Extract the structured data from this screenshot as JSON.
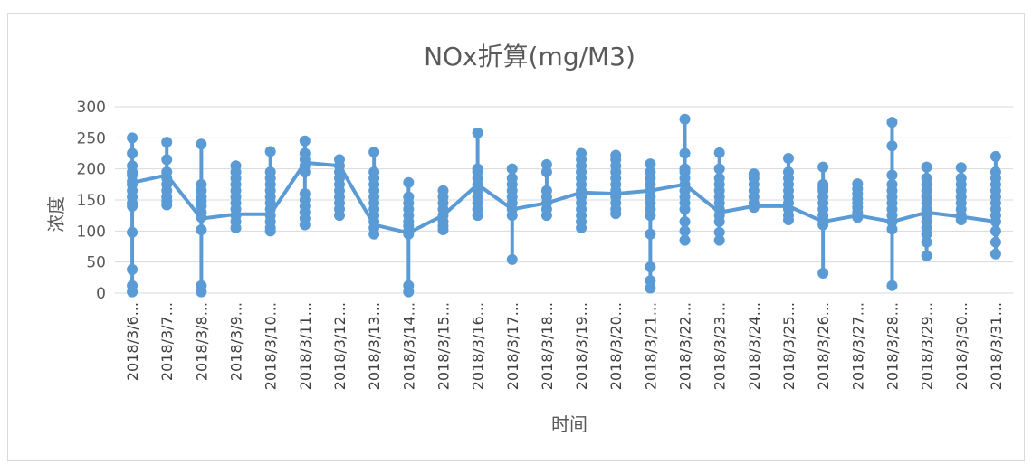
{
  "chart_data": {
    "type": "line",
    "title": "NOx折算(mg/M3)",
    "xlabel": "时间",
    "ylabel": "浓度",
    "ylim": [
      0,
      300
    ],
    "yticks": [
      0,
      50,
      100,
      150,
      200,
      250,
      300
    ],
    "grid": true,
    "legend": "none",
    "color": "#5b9bd5",
    "categories": [
      "2018/3/6...",
      "2018/3/7...",
      "2018/3/8...",
      "2018/3/9...",
      "2018/3/10...",
      "2018/3/11...",
      "2018/3/12...",
      "2018/3/13...",
      "2018/3/14...",
      "2018/3/15...",
      "2018/3/16...",
      "2018/3/17...",
      "2018/3/18...",
      "2018/3/19...",
      "2018/3/20...",
      "2018/3/21...",
      "2018/3/22...",
      "2018/3/23...",
      "2018/3/24...",
      "2018/3/25...",
      "2018/3/26...",
      "2018/3/27...",
      "2018/3/28...",
      "2018/3/29...",
      "2018/3/30...",
      "2018/3/31..."
    ],
    "series": [
      {
        "values": [
          [
            250,
            225,
            205,
            195,
            190,
            180,
            175,
            165,
            155,
            145,
            140,
            98,
            38,
            12,
            2
          ],
          [
            243,
            215,
            195,
            185,
            175,
            165,
            155,
            148,
            142
          ],
          [
            240,
            175,
            165,
            155,
            148,
            140,
            130,
            122,
            102,
            12,
            2
          ],
          [
            205,
            195,
            185,
            175,
            165,
            155,
            145,
            135,
            125,
            115,
            105
          ],
          [
            228,
            195,
            185,
            175,
            165,
            155,
            145,
            135,
            125,
            115,
            105,
            100
          ],
          [
            245,
            225,
            215,
            205,
            195,
            160,
            150,
            140,
            130,
            120,
            110
          ],
          [
            215,
            205,
            195,
            185,
            175,
            165,
            155,
            145,
            135,
            125
          ],
          [
            227,
            195,
            185,
            175,
            165,
            155,
            145,
            135,
            125,
            115,
            105,
            95
          ],
          [
            178,
            155,
            145,
            135,
            125,
            115,
            108,
            100,
            95,
            12,
            2
          ],
          [
            165,
            155,
            145,
            135,
            125,
            115,
            108,
            102
          ],
          [
            258,
            200,
            195,
            185,
            175,
            165,
            155,
            145,
            135,
            125
          ],
          [
            200,
            185,
            175,
            165,
            155,
            145,
            135,
            125,
            54
          ],
          [
            207,
            195,
            165,
            155,
            145,
            135,
            125
          ],
          [
            225,
            215,
            205,
            195,
            185,
            175,
            165,
            155,
            145,
            135,
            125,
            115,
            105
          ],
          [
            222,
            215,
            205,
            195,
            185,
            175,
            165,
            155,
            145,
            135,
            128
          ],
          [
            208,
            195,
            185,
            175,
            165,
            155,
            145,
            135,
            125,
            95,
            42,
            20,
            8
          ],
          [
            280,
            225,
            200,
            195,
            185,
            175,
            165,
            155,
            145,
            135,
            115,
            100,
            85
          ],
          [
            226,
            200,
            185,
            175,
            165,
            155,
            145,
            135,
            125,
            115,
            98,
            85
          ],
          [
            192,
            185,
            175,
            165,
            155,
            145,
            138
          ],
          [
            217,
            195,
            185,
            175,
            165,
            155,
            145,
            135,
            125,
            118
          ],
          [
            203,
            175,
            170,
            165,
            155,
            145,
            135,
            125,
            118,
            110,
            32
          ],
          [
            176,
            168,
            160,
            152,
            145,
            138,
            130,
            122
          ],
          [
            275,
            237,
            190,
            175,
            165,
            155,
            145,
            135,
            125,
            115,
            103,
            12
          ],
          [
            203,
            185,
            175,
            165,
            155,
            145,
            135,
            125,
            115,
            105,
            95,
            82,
            60
          ],
          [
            202,
            185,
            175,
            165,
            155,
            145,
            135,
            125,
            118
          ],
          [
            220,
            195,
            185,
            175,
            165,
            155,
            145,
            135,
            125,
            115,
            100,
            82,
            63
          ]
        ],
        "means": [
          178,
          190,
          120,
          127,
          127,
          210,
          205,
          110,
          97,
          125,
          175,
          135,
          145,
          162,
          160,
          165,
          175,
          130,
          140,
          140,
          115,
          125,
          115,
          130,
          123,
          115
        ]
      }
    ]
  }
}
